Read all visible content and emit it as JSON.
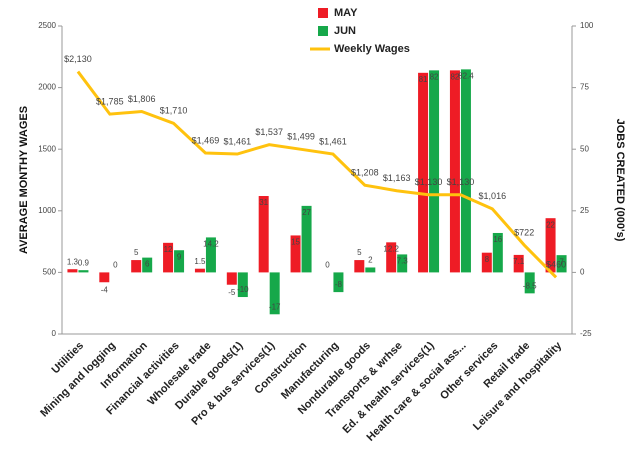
{
  "chart_data": {
    "type": "bar",
    "y_label": "AVERAGE MONTHY WAGES",
    "y2_label": "JOBS CREATED (000's)",
    "categories": [
      "Utilities",
      "Mining and logging",
      "Information",
      "Financial activities",
      "Wholesale trade",
      "Durable goods(1)",
      "Pro & bus services(1)",
      "Construction",
      "Manufacturing",
      "Nondurable goods",
      "Transports & wrhse",
      "Ed. & health services(1)",
      "Health care & social ass...",
      "Other services",
      "Retail trade",
      "Leisure and hospitality"
    ],
    "series": [
      {
        "name": "MAY",
        "type": "bar",
        "axis": "y2",
        "color": "#ee1c25",
        "values": [
          1.3,
          -4,
          5,
          12,
          1.5,
          -5,
          31,
          15,
          0,
          5,
          12.2,
          81,
          82,
          8,
          7.1,
          22
        ]
      },
      {
        "name": "JUN",
        "type": "bar",
        "axis": "y2",
        "color": "#16a84a",
        "values": [
          0.9,
          0,
          6,
          9,
          14.2,
          -10,
          -17,
          27,
          -8,
          2,
          7.3,
          82,
          82.4,
          16,
          -8.5,
          7
        ]
      },
      {
        "name": "Weekly Wages",
        "type": "line",
        "color": "#ffc20e",
        "values": [
          2130,
          1785,
          1806,
          1710,
          1469,
          1461,
          1537,
          1499,
          1461,
          1208,
          1163,
          1130,
          1130,
          1016,
          722,
          460
        ],
        "value_labels": [
          "$2,130",
          "$1,785",
          "$1,806",
          "$1,710",
          "$1,469",
          "$1,461",
          "$1,537",
          "$1,499",
          "$1,461",
          "$1,208",
          "$1,163",
          "$1,130",
          "$1,130",
          "$1,016",
          "$722",
          "$460"
        ]
      }
    ],
    "ylim": [
      0,
      2500
    ],
    "yticks": [
      0,
      500,
      1000,
      1500,
      2000,
      2500
    ],
    "y2lim": [
      -25,
      100
    ],
    "y2ticks": [
      -25,
      0,
      25,
      50,
      75,
      100
    ],
    "legend": "top"
  }
}
